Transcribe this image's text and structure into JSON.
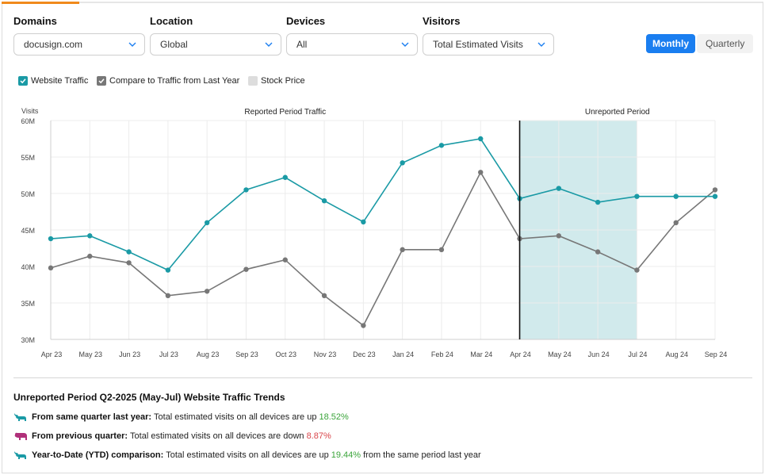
{
  "filters": [
    {
      "label": "Domains",
      "value": "docusign.com"
    },
    {
      "label": "Location",
      "value": "Global"
    },
    {
      "label": "Devices",
      "value": "All"
    },
    {
      "label": "Visitors",
      "value": "Total Estimated Visits"
    }
  ],
  "period_toggle": {
    "monthly": "Monthly",
    "quarterly": "Quarterly",
    "selected": "Monthly"
  },
  "legend": {
    "website_traffic": {
      "label": "Website Traffic",
      "checked": true,
      "color": "#1a9aa5"
    },
    "compare_traffic": {
      "label": "Compare to Traffic from Last Year",
      "checked": true,
      "color": "#777777"
    },
    "stock_price": {
      "label": "Stock Price",
      "checked": false,
      "color": "#dddddd"
    }
  },
  "chart_data": {
    "type": "line",
    "ylabel": "Visits",
    "ylim": [
      30,
      60
    ],
    "y_ticks": [
      "30M",
      "35M",
      "40M",
      "45M",
      "50M",
      "55M",
      "60M"
    ],
    "y_tick_values": [
      30,
      35,
      40,
      45,
      50,
      55,
      60
    ],
    "categories": [
      "Apr 23",
      "May 23",
      "Jun 23",
      "Jul 23",
      "Aug 23",
      "Sep 23",
      "Oct 23",
      "Nov 23",
      "Dec 23",
      "Jan 24",
      "Feb 24",
      "Mar 24",
      "Apr 24",
      "May 24",
      "Jun 24",
      "Jul 24",
      "Aug 24",
      "Sep 24"
    ],
    "series": [
      {
        "name": "Website Traffic",
        "color": "#1a9aa5",
        "values": [
          43.8,
          44.2,
          42.0,
          39.5,
          46.0,
          50.5,
          52.2,
          49.0,
          46.1,
          54.2,
          56.6,
          57.5,
          49.3,
          50.7,
          48.8,
          49.6,
          49.6,
          49.6
        ]
      },
      {
        "name": "Compare to Traffic from Last Year",
        "color": "#777777",
        "values": [
          39.8,
          41.4,
          40.5,
          36.0,
          36.6,
          39.6,
          40.9,
          36.0,
          31.9,
          42.3,
          42.3,
          52.9,
          43.8,
          44.2,
          42.0,
          39.5,
          46.0,
          50.5
        ]
      }
    ],
    "regions": [
      {
        "label": "Reported Period Traffic"
      },
      {
        "label": "Unreported Period"
      }
    ],
    "divider_at": "Apr 24",
    "shaded_range": [
      "Apr 24",
      "Jul 24"
    ],
    "shade_color": "#d1eaec",
    "grid": true
  },
  "summary": {
    "title": "Unreported Period Q2-2025 (May-Jul) Website Traffic Trends",
    "rows": [
      {
        "icon": "bull-icon",
        "label": "From same quarter last year:",
        "text": "Total estimated visits on all devices are up",
        "value": "18.52%",
        "direction": "up",
        "suffix": ""
      },
      {
        "icon": "bear-icon",
        "label": "From previous quarter:",
        "text": "Total estimated visits on all devices are down",
        "value": "8.87%",
        "direction": "down",
        "suffix": ""
      },
      {
        "icon": "bull-icon",
        "label": "Year-to-Date (YTD) comparison:",
        "text": "Total estimated visits on all devices are up",
        "value": "19.44%",
        "direction": "up",
        "suffix": "from the same period last year"
      }
    ]
  }
}
